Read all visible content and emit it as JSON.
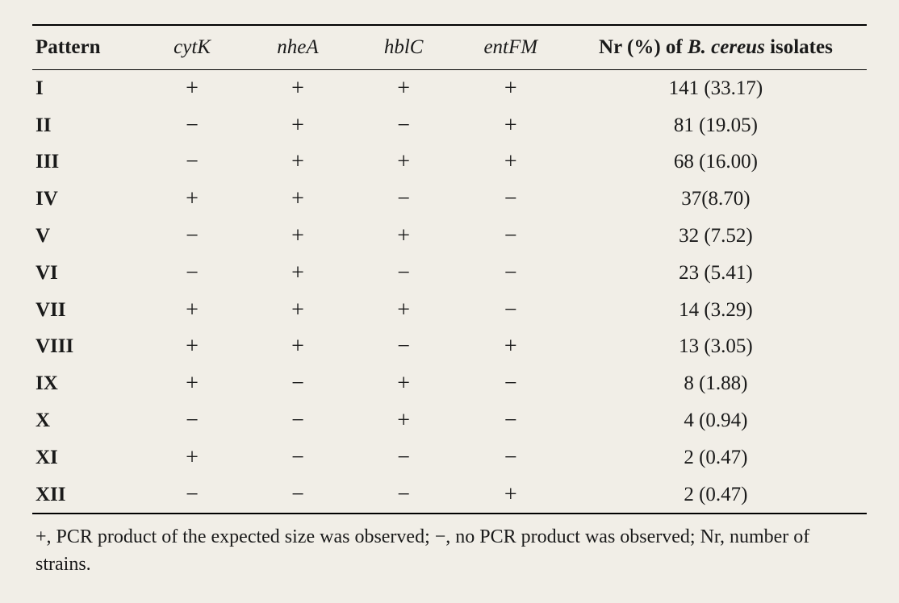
{
  "columns": {
    "pattern": "Pattern",
    "cytK": "cytK",
    "nheA": "nheA",
    "hblC": "hblC",
    "entFM": "entFM",
    "count_prefix": "Nr (%) of ",
    "count_species": "B. cereus",
    "count_suffix": " isolates"
  },
  "rows": [
    {
      "pattern": "I",
      "cytK": "+",
      "nheA": "+",
      "hblC": "+",
      "entFM": "+",
      "count": "141 (33.17)"
    },
    {
      "pattern": "II",
      "cytK": "−",
      "nheA": "+",
      "hblC": "−",
      "entFM": "+",
      "count": "81 (19.05)"
    },
    {
      "pattern": "III",
      "cytK": "−",
      "nheA": "+",
      "hblC": "+",
      "entFM": "+",
      "count": "68 (16.00)"
    },
    {
      "pattern": "IV",
      "cytK": "+",
      "nheA": "+",
      "hblC": "−",
      "entFM": "−",
      "count": "37(8.70)"
    },
    {
      "pattern": "V",
      "cytK": "−",
      "nheA": "+",
      "hblC": "+",
      "entFM": "−",
      "count": "32 (7.52)"
    },
    {
      "pattern": "VI",
      "cytK": "−",
      "nheA": "+",
      "hblC": "−",
      "entFM": "−",
      "count": "23 (5.41)"
    },
    {
      "pattern": "VII",
      "cytK": "+",
      "nheA": "+",
      "hblC": "+",
      "entFM": "−",
      "count": "14 (3.29)"
    },
    {
      "pattern": "VIII",
      "cytK": "+",
      "nheA": "+",
      "hblC": "−",
      "entFM": "+",
      "count": "13 (3.05)"
    },
    {
      "pattern": "IX",
      "cytK": "+",
      "nheA": "−",
      "hblC": "+",
      "entFM": "−",
      "count": "8 (1.88)"
    },
    {
      "pattern": "X",
      "cytK": "−",
      "nheA": "−",
      "hblC": "+",
      "entFM": "−",
      "count": "4 (0.94)"
    },
    {
      "pattern": "XI",
      "cytK": "+",
      "nheA": "−",
      "hblC": "−",
      "entFM": "−",
      "count": "2 (0.47)"
    },
    {
      "pattern": "XII",
      "cytK": "−",
      "nheA": "−",
      "hblC": "−",
      "entFM": "+",
      "count": "2 (0.47)"
    }
  ],
  "footnote": "+, PCR product of the expected size was observed; −, no PCR product was observed; Nr, number of strains."
}
